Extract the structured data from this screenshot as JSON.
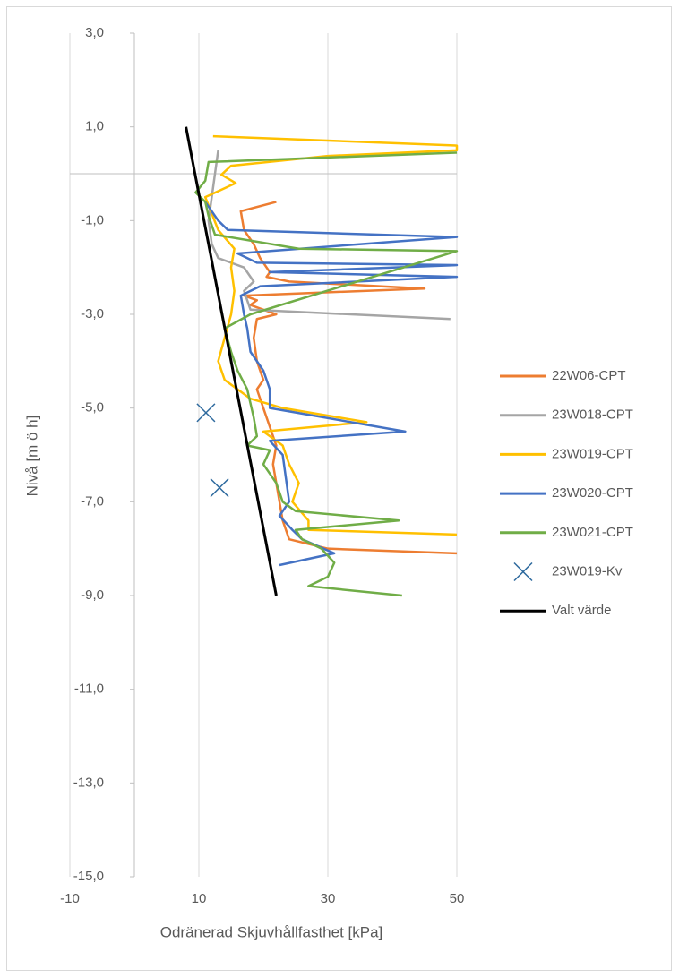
{
  "chart_data": {
    "type": "line",
    "xlabel": "Odränerad Skjuvhållfasthet [kPa]",
    "ylabel": "Nivå [m ö h]",
    "xlim": [
      -10,
      50
    ],
    "xticks": [
      -10,
      10,
      30,
      50
    ],
    "ylim": [
      -15,
      3
    ],
    "yticks": [
      {
        "value": 3,
        "label": "3,0"
      },
      {
        "value": 1,
        "label": "1,0"
      },
      {
        "value": -1,
        "label": "-1,0"
      },
      {
        "value": -3,
        "label": "-3,0"
      },
      {
        "value": -5,
        "label": "-5,0"
      },
      {
        "value": -7,
        "label": "-7,0"
      },
      {
        "value": -9,
        "label": "-9,0"
      },
      {
        "value": -11,
        "label": "-11,0"
      },
      {
        "value": -13,
        "label": "-13,0"
      },
      {
        "value": -15,
        "label": "-15,0"
      }
    ],
    "grid": true,
    "legend": "right",
    "series": [
      {
        "name": "22W06-CPT",
        "color": "#ed7d31",
        "x": [
          22,
          16.5,
          17,
          18.5,
          19.5,
          21,
          20.5,
          24,
          45,
          17,
          19,
          18,
          22,
          19,
          18.5,
          19,
          20,
          19,
          20,
          21,
          22,
          21.5,
          22,
          22.5,
          23,
          24,
          30,
          50
        ],
        "values": [
          -0.6,
          -0.8,
          -1.2,
          -1.5,
          -1.8,
          -2.1,
          -2.2,
          -2.3,
          -2.45,
          -2.6,
          -2.7,
          -2.8,
          -3.0,
          -3.1,
          -3.5,
          -4.0,
          -4.4,
          -4.6,
          -5.0,
          -5.4,
          -5.8,
          -6.2,
          -6.6,
          -7.0,
          -7.4,
          -7.8,
          -8.0,
          -8.1
        ]
      },
      {
        "name": "23W018-CPT",
        "color": "#a5a5a5",
        "x": [
          13,
          12.5,
          12,
          11.5,
          12,
          13,
          17,
          18.5,
          17,
          18,
          49
        ],
        "values": [
          0.5,
          0,
          -0.5,
          -1.0,
          -1.5,
          -1.8,
          -2.0,
          -2.3,
          -2.5,
          -2.9,
          -3.1
        ]
      },
      {
        "name": "23W019-CPT",
        "color": "#ffc000",
        "x": [
          12.2,
          50,
          50,
          30,
          15,
          13.5,
          15.7,
          11,
          13,
          15.5,
          15,
          15.5,
          15,
          14,
          13,
          14,
          18,
          23,
          36,
          20,
          23,
          24,
          25.5,
          24.5,
          27,
          27,
          50
        ],
        "values": [
          0.8,
          0.6,
          0.5,
          0.38,
          0.17,
          -0.02,
          -0.2,
          -0.5,
          -1.2,
          -1.6,
          -2.0,
          -2.5,
          -3.0,
          -3.5,
          -4.0,
          -4.4,
          -4.8,
          -5.0,
          -5.3,
          -5.5,
          -5.8,
          -6.2,
          -6.6,
          -7.0,
          -7.4,
          -7.6,
          -7.7
        ]
      },
      {
        "name": "23W020-CPT",
        "color": "#4472c4",
        "x": [
          11,
          13,
          14.5,
          50,
          16,
          19,
          50,
          21,
          50,
          19.5,
          16.5,
          17,
          17.5,
          18,
          20,
          21,
          21,
          42,
          21,
          23,
          23.5,
          24,
          22.5,
          24.5,
          26,
          31,
          22.5
        ],
        "values": [
          -0.6,
          -1.0,
          -1.2,
          -1.35,
          -1.7,
          -1.9,
          -1.95,
          -2.1,
          -2.2,
          -2.4,
          -2.6,
          -3.0,
          -3.3,
          -3.8,
          -4.2,
          -4.6,
          -5.0,
          -5.5,
          -5.7,
          -6.0,
          -6.5,
          -7.0,
          -7.3,
          -7.6,
          -7.8,
          -8.1,
          -8.35
        ]
      },
      {
        "name": "23W021-CPT",
        "color": "#70ad47",
        "x": [
          50,
          11.5,
          11,
          9.5,
          11,
          11.5,
          12.5,
          25.5,
          50,
          18,
          14,
          15,
          16,
          17.5,
          18.5,
          19,
          17.5,
          21,
          20,
          22,
          23,
          25,
          41,
          25,
          26,
          29,
          31,
          30,
          27,
          41.5
        ],
        "values": [
          0.45,
          0.25,
          -0.15,
          -0.4,
          -0.6,
          -0.9,
          -1.3,
          -1.6,
          -1.65,
          -3.0,
          -3.3,
          -3.8,
          -4.2,
          -4.6,
          -5.2,
          -5.6,
          -5.8,
          -5.9,
          -6.2,
          -6.6,
          -7.0,
          -7.2,
          -7.4,
          -7.6,
          -7.8,
          -8.0,
          -8.3,
          -8.6,
          -8.8,
          -9.0
        ]
      },
      {
        "name": "23W019-Kv",
        "color": "#2e6a9e",
        "mode": "markers",
        "x": [
          11.1,
          13.2
        ],
        "values": [
          -5.1,
          -6.7
        ]
      },
      {
        "name": "Valt värde",
        "color": "#000000",
        "x": [
          8,
          22
        ],
        "values": [
          1,
          -9
        ]
      }
    ]
  }
}
